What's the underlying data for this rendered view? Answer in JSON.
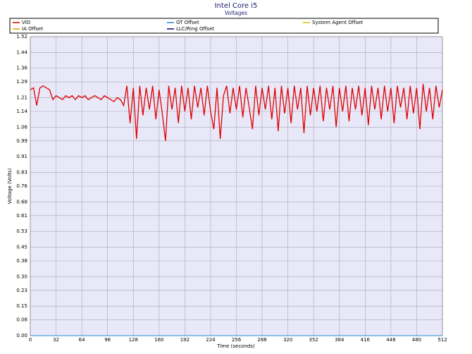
{
  "chart_data": {
    "type": "line",
    "title": "Intel Core i5",
    "subtitle": "Voltages",
    "x_label": "Time (seconds)",
    "y_label": "Voltage (Volts)",
    "xlim": [
      0,
      512
    ],
    "xticks": [
      0,
      32,
      64,
      96,
      128,
      160,
      192,
      224,
      256,
      288,
      320,
      352,
      384,
      416,
      448,
      480,
      512
    ],
    "ylim": [
      0,
      1.52
    ],
    "yticks": [
      {
        "value": 0,
        "label": "0.00"
      },
      0.08,
      0.15,
      0.23,
      {
        "value": 0.3,
        "label": "0.30"
      },
      0.38,
      0.45,
      0.53,
      0.61,
      0.68,
      0.76,
      0.83,
      0.91,
      0.99,
      1.06,
      1.14,
      1.21,
      1.29,
      1.36,
      1.44,
      1.52
    ],
    "grid": true,
    "x": [
      0,
      4,
      8,
      12,
      16,
      20,
      24,
      28,
      32,
      36,
      40,
      44,
      48,
      52,
      56,
      60,
      64,
      68,
      72,
      76,
      80,
      84,
      88,
      92,
      96,
      100,
      104,
      108,
      112,
      116,
      120,
      124,
      128,
      132,
      136,
      140,
      144,
      148,
      152,
      156,
      160,
      164,
      168,
      172,
      176,
      180,
      184,
      188,
      192,
      196,
      200,
      204,
      208,
      212,
      216,
      220,
      224,
      228,
      232,
      236,
      240,
      244,
      248,
      252,
      256,
      260,
      264,
      268,
      272,
      276,
      280,
      284,
      288,
      292,
      296,
      300,
      304,
      308,
      312,
      316,
      320,
      324,
      328,
      332,
      336,
      340,
      344,
      348,
      352,
      356,
      360,
      364,
      368,
      372,
      376,
      380,
      384,
      388,
      392,
      396,
      400,
      404,
      408,
      412,
      416,
      420,
      424,
      428,
      432,
      436,
      440,
      444,
      448,
      452,
      456,
      460,
      464,
      468,
      472,
      476,
      480,
      484,
      488,
      492,
      496,
      500,
      504,
      508,
      512
    ],
    "series": [
      {
        "name": "VID",
        "color": "#e00000",
        "values": [
          1.25,
          1.26,
          1.17,
          1.26,
          1.27,
          1.26,
          1.25,
          1.2,
          1.22,
          1.21,
          1.2,
          1.22,
          1.21,
          1.22,
          1.2,
          1.22,
          1.21,
          1.22,
          1.2,
          1.21,
          1.22,
          1.21,
          1.2,
          1.22,
          1.21,
          1.2,
          1.19,
          1.21,
          1.2,
          1.17,
          1.27,
          1.08,
          1.26,
          1.0,
          1.27,
          1.12,
          1.26,
          1.15,
          1.27,
          1.1,
          1.25,
          1.13,
          0.99,
          1.27,
          1.15,
          1.26,
          1.08,
          1.27,
          1.14,
          1.26,
          1.1,
          1.27,
          1.16,
          1.26,
          1.12,
          1.27,
          1.14,
          1.05,
          1.26,
          1.0,
          1.22,
          1.27,
          1.13,
          1.26,
          1.15,
          1.27,
          1.11,
          1.26,
          1.16,
          1.05,
          1.27,
          1.12,
          1.26,
          1.15,
          1.27,
          1.1,
          1.26,
          1.04,
          1.27,
          1.13,
          1.26,
          1.08,
          1.27,
          1.15,
          1.26,
          1.03,
          1.27,
          1.12,
          1.26,
          1.14,
          1.27,
          1.09,
          1.26,
          1.15,
          1.27,
          1.06,
          1.26,
          1.14,
          1.27,
          1.09,
          1.26,
          1.15,
          1.27,
          1.12,
          1.26,
          1.07,
          1.27,
          1.15,
          1.26,
          1.1,
          1.27,
          1.14,
          1.26,
          1.08,
          1.27,
          1.16,
          1.26,
          1.1,
          1.27,
          1.13,
          1.26,
          1.05,
          1.28,
          1.14,
          1.26,
          1.1,
          1.27,
          1.16,
          1.25
        ]
      },
      {
        "name": "GT Offset",
        "color": "#2288cc",
        "values": [
          0,
          0,
          0,
          0,
          0,
          0,
          0,
          0,
          0,
          0,
          0,
          0,
          0,
          0,
          0,
          0,
          0,
          0,
          0,
          0,
          0,
          0,
          0,
          0,
          0,
          0,
          0,
          0,
          0,
          0,
          0,
          0,
          0,
          0,
          0,
          0,
          0,
          0,
          0,
          0,
          0,
          0,
          0,
          0,
          0,
          0,
          0,
          0,
          0,
          0,
          0,
          0,
          0,
          0,
          0,
          0,
          0,
          0,
          0,
          0,
          0,
          0,
          0,
          0,
          0,
          0,
          0,
          0,
          0,
          0,
          0,
          0,
          0,
          0,
          0,
          0,
          0,
          0,
          0,
          0,
          0,
          0,
          0,
          0,
          0,
          0,
          0,
          0,
          0,
          0,
          0,
          0,
          0,
          0,
          0,
          0,
          0,
          0,
          0,
          0,
          0,
          0,
          0,
          0,
          0,
          0,
          0,
          0,
          0,
          0,
          0,
          0,
          0,
          0,
          0,
          0,
          0,
          0,
          0,
          0,
          0,
          0,
          0,
          0,
          0,
          0,
          0,
          0,
          0
        ]
      },
      {
        "name": "System Agent Offset",
        "color": "#c8c800",
        "values": [
          0,
          0,
          0,
          0,
          0,
          0,
          0,
          0,
          0,
          0,
          0,
          0,
          0,
          0,
          0,
          0,
          0,
          0,
          0,
          0,
          0,
          0,
          0,
          0,
          0,
          0,
          0,
          0,
          0,
          0,
          0,
          0,
          0,
          0,
          0,
          0,
          0,
          0,
          0,
          0,
          0,
          0,
          0,
          0,
          0,
          0,
          0,
          0,
          0,
          0,
          0,
          0,
          0,
          0,
          0,
          0,
          0,
          0,
          0,
          0,
          0,
          0,
          0,
          0,
          0,
          0,
          0,
          0,
          0,
          0,
          0,
          0,
          0,
          0,
          0,
          0,
          0,
          0,
          0,
          0,
          0,
          0,
          0,
          0,
          0,
          0,
          0,
          0,
          0,
          0,
          0,
          0,
          0,
          0,
          0,
          0,
          0,
          0,
          0,
          0,
          0,
          0,
          0,
          0,
          0,
          0,
          0,
          0,
          0,
          0,
          0,
          0,
          0,
          0,
          0,
          0,
          0,
          0,
          0,
          0,
          0,
          0,
          0,
          0,
          0,
          0,
          0,
          0,
          0
        ]
      },
      {
        "name": "IA Offset",
        "color": "#e0a000",
        "values": [
          0,
          0,
          0,
          0,
          0,
          0,
          0,
          0,
          0,
          0,
          0,
          0,
          0,
          0,
          0,
          0,
          0,
          0,
          0,
          0,
          0,
          0,
          0,
          0,
          0,
          0,
          0,
          0,
          0,
          0,
          0,
          0,
          0,
          0,
          0,
          0,
          0,
          0,
          0,
          0,
          0,
          0,
          0,
          0,
          0,
          0,
          0,
          0,
          0,
          0,
          0,
          0,
          0,
          0,
          0,
          0,
          0,
          0,
          0,
          0,
          0,
          0,
          0,
          0,
          0,
          0,
          0,
          0,
          0,
          0,
          0,
          0,
          0,
          0,
          0,
          0,
          0,
          0,
          0,
          0,
          0,
          0,
          0,
          0,
          0,
          0,
          0,
          0,
          0,
          0,
          0,
          0,
          0,
          0,
          0,
          0,
          0,
          0,
          0,
          0,
          0,
          0,
          0,
          0,
          0,
          0,
          0,
          0,
          0,
          0,
          0,
          0,
          0,
          0,
          0,
          0,
          0,
          0,
          0,
          0,
          0,
          0,
          0,
          0,
          0,
          0,
          0,
          0,
          0
        ]
      },
      {
        "name": "LLC/Ring Offset",
        "color": "#000080",
        "values": [
          0,
          0,
          0,
          0,
          0,
          0,
          0,
          0,
          0,
          0,
          0,
          0,
          0,
          0,
          0,
          0,
          0,
          0,
          0,
          0,
          0,
          0,
          0,
          0,
          0,
          0,
          0,
          0,
          0,
          0,
          0,
          0,
          0,
          0,
          0,
          0,
          0,
          0,
          0,
          0,
          0,
          0,
          0,
          0,
          0,
          0,
          0,
          0,
          0,
          0,
          0,
          0,
          0,
          0,
          0,
          0,
          0,
          0,
          0,
          0,
          0,
          0,
          0,
          0,
          0,
          0,
          0,
          0,
          0,
          0,
          0,
          0,
          0,
          0,
          0,
          0,
          0,
          0,
          0,
          0,
          0,
          0,
          0,
          0,
          0,
          0,
          0,
          0,
          0,
          0,
          0,
          0,
          0,
          0,
          0,
          0,
          0,
          0,
          0,
          0,
          0,
          0,
          0,
          0,
          0,
          0,
          0,
          0,
          0,
          0,
          0,
          0,
          0,
          0,
          0,
          0,
          0,
          0,
          0,
          0,
          0,
          0,
          0,
          0,
          0,
          0,
          0,
          0,
          0
        ]
      }
    ]
  }
}
